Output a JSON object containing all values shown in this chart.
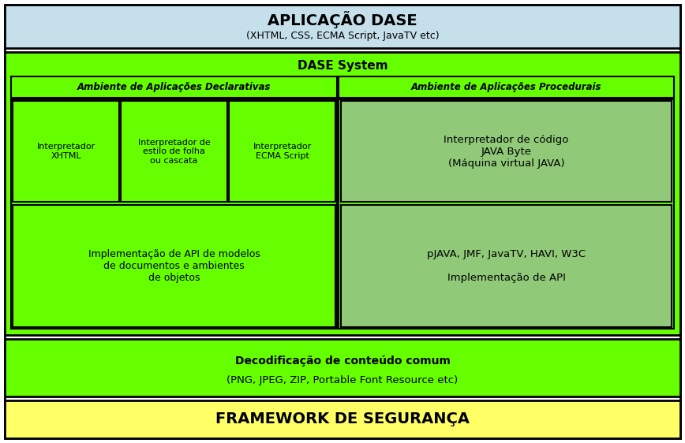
{
  "fig_width": 8.68,
  "fig_height": 5.62,
  "dpi": 100,
  "bg_color": "#ffffff",
  "colors": {
    "light_blue": "#c5e0eb",
    "bright_green": "#66ff00",
    "medium_green": "#90c978",
    "yellow": "#ffff66",
    "border": "#000000",
    "text_dark": "#000000",
    "text_green": "#336600"
  },
  "top_box": {
    "text_line1": "APLICAÇÃO DASE",
    "text_line2": "(XHTML, CSS, ECMA Script, JavaTV etc)",
    "bg": "#c5e0eb"
  },
  "dase_system": {
    "label": "DASE System",
    "bg": "#66ff00"
  },
  "declarative_env": {
    "label": "Ambiente de Aplicações Declarativas",
    "bg": "#66ff00"
  },
  "procedural_env": {
    "label": "Ambiente de Aplicações Procedurais",
    "bg": "#66ff00"
  },
  "interp_xhtml": {
    "label": "Interpretador\nXHTML"
  },
  "interp_estilo": {
    "label": "Interpretador de\nestilo de folha\nou cascata"
  },
  "interp_ecma": {
    "label": "Interpretador\nECMA Script"
  },
  "interp_java": {
    "label": "Interpretador de código\nJAVA Byte\n(Máquina virtual JAVA)",
    "bg": "#90c978"
  },
  "impl_api_doc": {
    "label": "Implementação de API de modelos\nde documentos e ambientes\nde objetos",
    "bg": "#66ff00"
  },
  "pjava_api": {
    "label": "pJAVA, JMF, JavaTV, HAVI, W3C\n\nImplementação de API",
    "bg": "#90c978"
  },
  "decodificacao": {
    "label": "Decodificação de conteúdo comum\n\n(PNG, JPEG, ZIP, Portable Font Resource etc)",
    "bg": "#66ff00"
  },
  "framework": {
    "label": "FRAMEWORK DE SEGURANÇA",
    "bg": "#ffff66"
  }
}
